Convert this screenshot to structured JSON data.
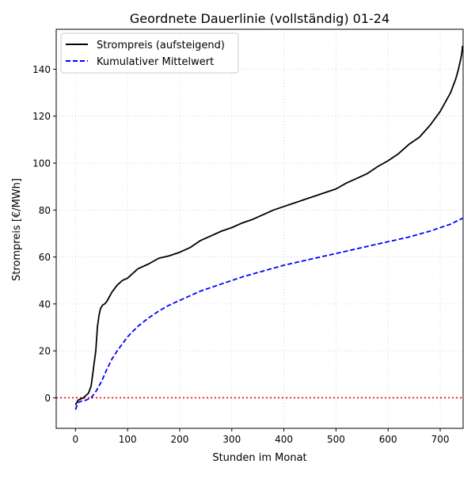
{
  "chart_data": {
    "type": "line",
    "title": "Geordnete Dauerlinie (vollständig) 01-24",
    "xlabel": "Stunden im Monat",
    "ylabel": "Strompreis [€/MWh]",
    "xlim": [
      -37,
      744
    ],
    "ylim": [
      -13,
      157
    ],
    "xticks": [
      0,
      100,
      200,
      300,
      400,
      500,
      600,
      700
    ],
    "yticks": [
      0,
      20,
      40,
      60,
      80,
      100,
      120,
      140
    ],
    "grid": true,
    "legend_position": "top-left",
    "series": [
      {
        "name": "Strompreis (aufsteigend)",
        "color": "#000000",
        "style": "solid",
        "x": [
          0,
          5,
          10,
          15,
          20,
          25,
          30,
          33,
          36,
          39,
          42,
          45,
          48,
          52,
          56,
          60,
          65,
          70,
          75,
          80,
          90,
          100,
          110,
          120,
          140,
          160,
          180,
          200,
          220,
          240,
          260,
          280,
          300,
          320,
          340,
          360,
          380,
          400,
          420,
          440,
          460,
          480,
          500,
          520,
          540,
          560,
          580,
          600,
          620,
          640,
          660,
          680,
          700,
          710,
          720,
          730,
          735,
          738,
          741,
          742,
          743
        ],
        "values": [
          -3,
          -1,
          -0.5,
          0,
          1,
          2,
          5,
          10,
          15,
          20,
          30,
          35,
          38,
          39.5,
          40,
          41,
          43,
          45,
          46.5,
          48,
          50,
          51,
          53,
          55,
          57,
          59.5,
          60.5,
          62,
          64,
          67,
          69,
          71,
          72.5,
          74.5,
          76,
          78,
          80,
          81.5,
          83,
          84.5,
          86,
          87.5,
          89,
          91.5,
          93.5,
          95.5,
          98.5,
          101,
          104,
          108,
          111,
          116,
          122,
          126,
          130,
          136,
          140,
          143,
          146,
          148,
          150
        ]
      },
      {
        "name": "Kumulativer Mittelwert",
        "color": "#0000ff",
        "style": "dashed",
        "x": [
          0,
          5,
          10,
          20,
          30,
          40,
          50,
          60,
          70,
          80,
          100,
          120,
          140,
          160,
          180,
          200,
          240,
          280,
          320,
          360,
          400,
          440,
          480,
          520,
          560,
          600,
          640,
          680,
          720,
          743
        ],
        "values": [
          -5,
          -2,
          -1.5,
          -1,
          0,
          3,
          7,
          12,
          16.5,
          20,
          26,
          30.5,
          34,
          37,
          39.5,
          41.5,
          45.5,
          48.5,
          51.5,
          54,
          56.5,
          58.5,
          60.5,
          62.5,
          64.5,
          66.5,
          68.5,
          71,
          74,
          76.5
        ]
      },
      {
        "name": "",
        "color": "#ff0000",
        "style": "dotted",
        "reference_line": "horizontal",
        "y": 0
      }
    ]
  }
}
